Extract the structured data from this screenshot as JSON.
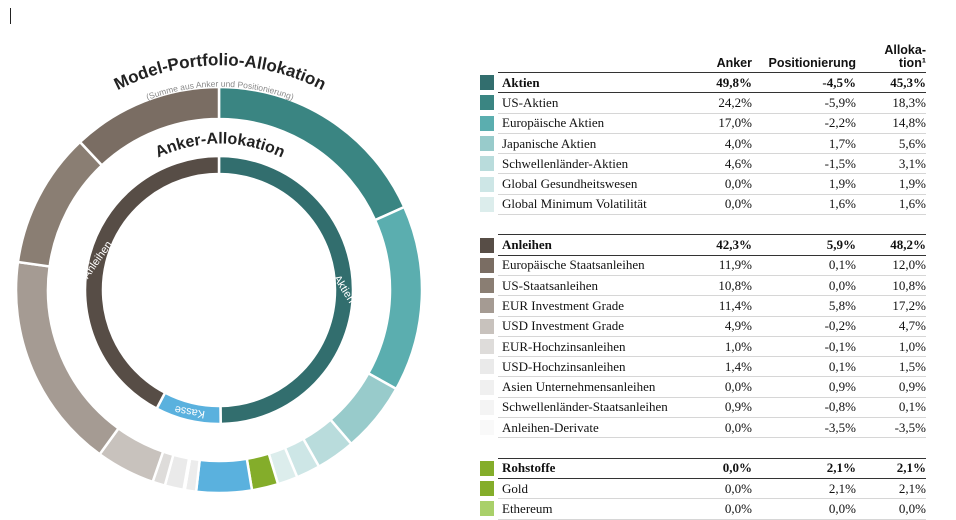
{
  "chart_data": {
    "type": "pie",
    "outer_title": "Model-Portfolio-Allokation",
    "outer_subtitle": "(Summe aus Anker und Positionierung)",
    "inner_title": "Anker-Allokation",
    "inner_ring": [
      {
        "label": "Aktien",
        "value": 49.8,
        "color": "#326e6e"
      },
      {
        "label": "Kasse",
        "value": 7.9,
        "color": "#5ab1de"
      },
      {
        "label": "Anleihen",
        "value": 42.3,
        "color": "#574d46"
      }
    ],
    "outer_ring": [
      {
        "label": "US-Aktien",
        "value": 18.3,
        "color": "#3a8582"
      },
      {
        "label": "Europäische Aktien",
        "value": 14.8,
        "color": "#5baeaf"
      },
      {
        "label": "Japanische Aktien",
        "value": 5.6,
        "color": "#98cbcb"
      },
      {
        "label": "Schwellenländer-Aktien",
        "value": 3.1,
        "color": "#b9dcdc"
      },
      {
        "label": "Global Gesundheitswesen",
        "value": 1.9,
        "color": "#cde6e6"
      },
      {
        "label": "Global Minimum Volatilität",
        "value": 1.6,
        "color": "#dcedec"
      },
      {
        "label": "Gold",
        "value": 2.1,
        "color": "#84ad2a"
      },
      {
        "label": "Kasse",
        "value": 4.4,
        "color": "#5ab1de"
      },
      {
        "label": "Asien Unternehmensanleihen",
        "value": 0.9,
        "color": "#ececec"
      },
      {
        "label": "Schwellenländer-Staatsanleihen",
        "value": 0.1,
        "color": "#f3f3f3"
      },
      {
        "label": "USD-Hochzinsanleihen",
        "value": 1.5,
        "color": "#eaeaea"
      },
      {
        "label": "EUR-Hochzinsanleihen",
        "value": 1.0,
        "color": "#dedcda"
      },
      {
        "label": "USD Investment Grade",
        "value": 4.7,
        "color": "#c8c2bd"
      },
      {
        "label": "EUR Investment Grade",
        "value": 17.2,
        "color": "#a59b93"
      },
      {
        "label": "US-Staatsanleihen",
        "value": 10.8,
        "color": "#8a7e73"
      },
      {
        "label": "Europäische Staatsanleihen",
        "value": 12.0,
        "color": "#7a6d63"
      }
    ]
  },
  "table": {
    "headers": {
      "anker": "Anker",
      "positionierung": "Positionierung",
      "allokation_1": "Alloka-",
      "allokation_2": "tion¹"
    },
    "groups": [
      {
        "name": "Aktien",
        "anker": "49,8%",
        "pos": "-4,5%",
        "alloc": "45,3%",
        "color": "#326e6e",
        "rows": [
          {
            "name": "US-Aktien",
            "anker": "24,2%",
            "pos": "-5,9%",
            "alloc": "18,3%",
            "color": "#3a8582"
          },
          {
            "name": "Europäische Aktien",
            "anker": "17,0%",
            "pos": "-2,2%",
            "alloc": "14,8%",
            "color": "#5baeaf"
          },
          {
            "name": "Japanische Aktien",
            "anker": "4,0%",
            "pos": "1,7%",
            "alloc": "5,6%",
            "color": "#98cbcb"
          },
          {
            "name": "Schwellenländer-Aktien",
            "anker": "4,6%",
            "pos": "-1,5%",
            "alloc": "3,1%",
            "color": "#b9dcdc"
          },
          {
            "name": "Global Gesundheitswesen",
            "anker": "0,0%",
            "pos": "1,9%",
            "alloc": "1,9%",
            "color": "#cde6e6"
          },
          {
            "name": "Global Minimum Volatilität",
            "anker": "0,0%",
            "pos": "1,6%",
            "alloc": "1,6%",
            "color": "#dcedec"
          }
        ]
      },
      {
        "name": "Anleihen",
        "anker": "42,3%",
        "pos": "5,9%",
        "alloc": "48,2%",
        "color": "#574d46",
        "rows": [
          {
            "name": "Europäische Staatsanleihen",
            "anker": "11,9%",
            "pos": "0,1%",
            "alloc": "12,0%",
            "color": "#7a6d63"
          },
          {
            "name": "US-Staatsanleihen",
            "anker": "10,8%",
            "pos": "0,0%",
            "alloc": "10,8%",
            "color": "#8a7e73"
          },
          {
            "name": "EUR Investment Grade",
            "anker": "11,4%",
            "pos": "5,8%",
            "alloc": "17,2%",
            "color": "#a59b93"
          },
          {
            "name": "USD Investment Grade",
            "anker": "4,9%",
            "pos": "-0,2%",
            "alloc": "4,7%",
            "color": "#c8c2bd"
          },
          {
            "name": "EUR-Hochzinsanleihen",
            "anker": "1,0%",
            "pos": "-0,1%",
            "alloc": "1,0%",
            "color": "#dedcda"
          },
          {
            "name": "USD-Hochzinsanleihen",
            "anker": "1,4%",
            "pos": "0,1%",
            "alloc": "1,5%",
            "color": "#eaeaea"
          },
          {
            "name": "Asien Unternehmensanleihen",
            "anker": "0,0%",
            "pos": "0,9%",
            "alloc": "0,9%",
            "color": "#f0f0f0"
          },
          {
            "name": "Schwellenländer-Staatsanleihen",
            "anker": "0,9%",
            "pos": "-0,8%",
            "alloc": "0,1%",
            "color": "#f4f4f4"
          },
          {
            "name": "Anleihen-Derivate",
            "anker": "0,0%",
            "pos": "-3,5%",
            "alloc": "-3,5%",
            "color": "#f9f9f9"
          }
        ]
      },
      {
        "name": "Rohstoffe",
        "anker": "0,0%",
        "pos": "2,1%",
        "alloc": "2,1%",
        "color": "#84ad2a",
        "rows": [
          {
            "name": "Gold",
            "anker": "0,0%",
            "pos": "2,1%",
            "alloc": "2,1%",
            "color": "#84ad2a"
          },
          {
            "name": "Ethereum",
            "anker": "0,0%",
            "pos": "0,0%",
            "alloc": "0,0%",
            "color": "#a9d06a"
          }
        ]
      }
    ]
  }
}
